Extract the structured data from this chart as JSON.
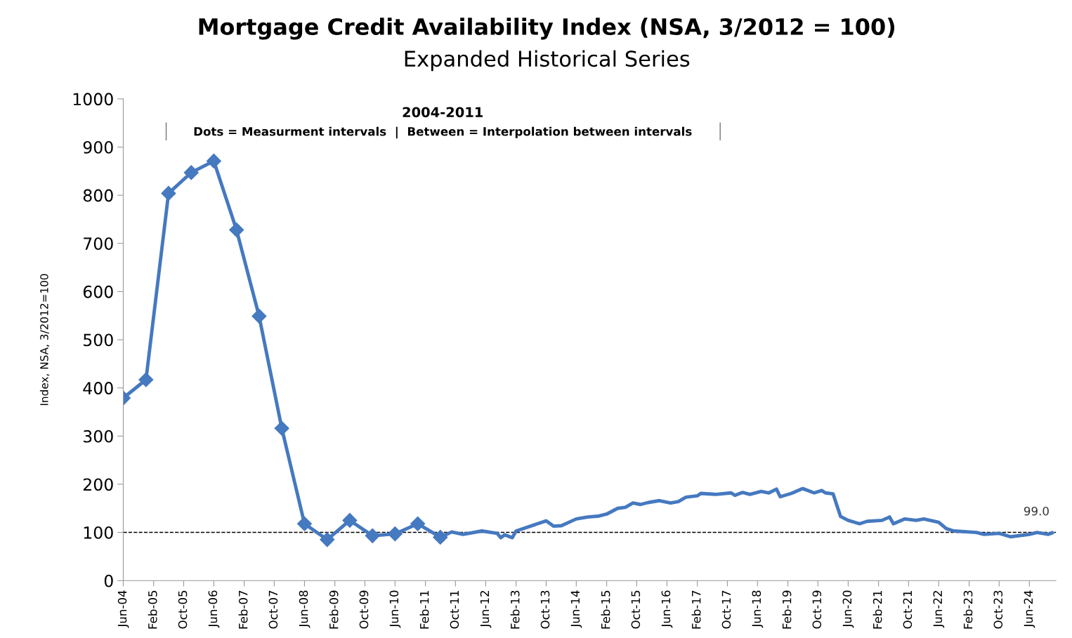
{
  "chart_data": {
    "type": "line",
    "title": "Mortgage Credit Availability Index (NSA, 3/2012 = 100)",
    "subtitle": "Expanded Historical Series",
    "ylabel": "Index, NSA, 3/2012=100",
    "annotations": [
      "2004-2011",
      "Dots = Measurment intervals  |  Between = Interpolation between intervals",
      {
        "text": "99.0",
        "x": "2024-12",
        "y": 99.0
      }
    ],
    "series": [
      {
        "color": "#4579c0",
        "marker": "diamond",
        "x": [
          "2004-06",
          "2004-12",
          "2005-06",
          "2005-12",
          "2006-06",
          "2006-12",
          "2007-06",
          "2007-12",
          "2008-06",
          "2008-12",
          "2009-06",
          "2009-12",
          "2010-06",
          "2010-12",
          "2011-06"
        ],
        "values": [
          379,
          417,
          804,
          847,
          871,
          728,
          549,
          316,
          118,
          85,
          125,
          93,
          97,
          118,
          90
        ]
      },
      {
        "color": "#4579c0",
        "marker": "none",
        "x": [
          "2011-06",
          "2011-09",
          "2011-12",
          "2012-05",
          "2012-09",
          "2012-10",
          "2012-11",
          "2013-01",
          "2013-02",
          "2013-07",
          "2013-10",
          "2013-12",
          "2014-02",
          "2014-06",
          "2014-09",
          "2014-12",
          "2015-02",
          "2015-05",
          "2015-07",
          "2015-09",
          "2015-11",
          "2016-01",
          "2016-04",
          "2016-07",
          "2016-09",
          "2016-11",
          "2017-02",
          "2017-03",
          "2017-07",
          "2017-11",
          "2017-12",
          "2018-02",
          "2018-04",
          "2018-07",
          "2018-09",
          "2018-11",
          "2018-12",
          "2019-03",
          "2019-06",
          "2019-09",
          "2019-11",
          "2019-12",
          "2020-02",
          "2020-03",
          "2020-04",
          "2020-06",
          "2020-09",
          "2020-11",
          "2021-03",
          "2021-05",
          "2021-06",
          "2021-09",
          "2021-12",
          "2022-02",
          "2022-06",
          "2022-08",
          "2022-10",
          "2023-04",
          "2023-06",
          "2023-10",
          "2024-01",
          "2024-06",
          "2024-08",
          "2024-11",
          "2024-12"
        ],
        "values": [
          90,
          101,
          96,
          103,
          98,
          89,
          95,
          89,
          103,
          116,
          124,
          113,
          114,
          128,
          132,
          134,
          138,
          150,
          152,
          161,
          158,
          162,
          166,
          161,
          164,
          173,
          176,
          181,
          179,
          182,
          177,
          183,
          179,
          185,
          182,
          190,
          174,
          181,
          191,
          182,
          187,
          182,
          180,
          157,
          133,
          125,
          118,
          123,
          125,
          132,
          118,
          128,
          125,
          128,
          121,
          108,
          103,
          100,
          96,
          98,
          91,
          96,
          100,
          96,
          99.0
        ]
      }
    ],
    "ref_lines": [
      {
        "axis": "y",
        "value": 100,
        "color": "#000000",
        "line_style": "dashed"
      }
    ],
    "xlim": [
      "2004-06",
      "2025-01"
    ],
    "xticks": [
      {
        "value": "2004-06",
        "label": "Jun-04"
      },
      {
        "value": "2005-02",
        "label": "Feb-05"
      },
      {
        "value": "2005-10",
        "label": "Oct-05"
      },
      {
        "value": "2006-06",
        "label": "Jun-06"
      },
      {
        "value": "2007-02",
        "label": "Feb-07"
      },
      {
        "value": "2007-10",
        "label": "Oct-07"
      },
      {
        "value": "2008-06",
        "label": "Jun-08"
      },
      {
        "value": "2009-02",
        "label": "Feb-09"
      },
      {
        "value": "2009-10",
        "label": "Oct-09"
      },
      {
        "value": "2010-06",
        "label": "Jun-10"
      },
      {
        "value": "2011-02",
        "label": "Feb-11"
      },
      {
        "value": "2011-10",
        "label": "Oct-11"
      },
      {
        "value": "2012-06",
        "label": "Jun-12"
      },
      {
        "value": "2013-02",
        "label": "Feb-13"
      },
      {
        "value": "2013-10",
        "label": "Oct-13"
      },
      {
        "value": "2014-06",
        "label": "Jun-14"
      },
      {
        "value": "2015-02",
        "label": "Feb-15"
      },
      {
        "value": "2015-10",
        "label": "Oct-15"
      },
      {
        "value": "2016-06",
        "label": "Jun-16"
      },
      {
        "value": "2017-02",
        "label": "Feb-17"
      },
      {
        "value": "2017-10",
        "label": "Oct-17"
      },
      {
        "value": "2018-06",
        "label": "Jun-18"
      },
      {
        "value": "2019-02",
        "label": "Feb-19"
      },
      {
        "value": "2019-10",
        "label": "Oct-19"
      },
      {
        "value": "2020-06",
        "label": "Jun-20"
      },
      {
        "value": "2021-02",
        "label": "Feb-21"
      },
      {
        "value": "2021-10",
        "label": "Oct-21"
      },
      {
        "value": "2022-06",
        "label": "Jun-22"
      },
      {
        "value": "2023-02",
        "label": "Feb-23"
      },
      {
        "value": "2023-10",
        "label": "Oct-23"
      },
      {
        "value": "2024-06",
        "label": "Jun-24"
      }
    ],
    "ylim": [
      0,
      1000
    ],
    "yticks": [
      0,
      100,
      200,
      300,
      400,
      500,
      600,
      700,
      800,
      900,
      1000
    ],
    "grid": false,
    "legend": false,
    "line_style": "solid"
  }
}
